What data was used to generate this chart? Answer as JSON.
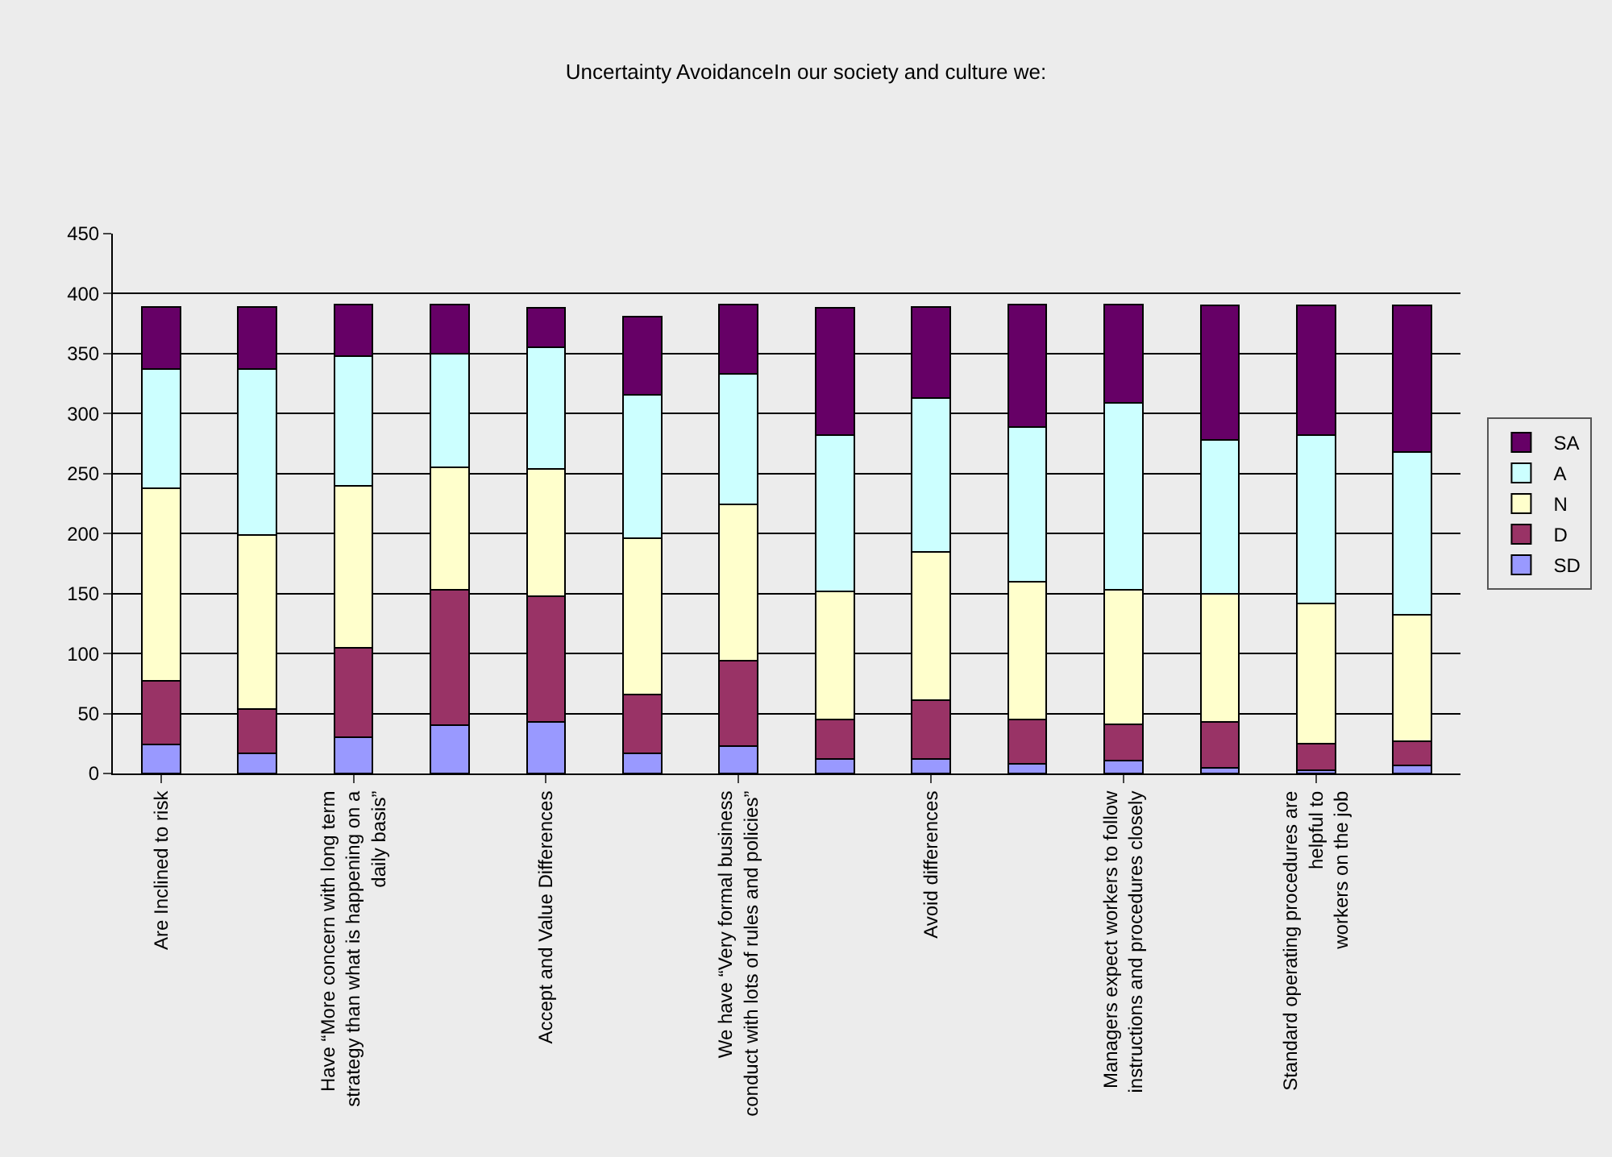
{
  "chart_data": {
    "type": "bar",
    "stacked": true,
    "title": "Uncertainty AvoidanceIn our society and culture we:",
    "categories": [
      "Are Inclined to risk",
      null,
      "Have “More concern with long term\nstrategy than what is happening on a\ndaily basis”",
      null,
      "Accept and Value Differences",
      null,
      "We have “Very formal business\nconduct with lots of rules and policies”",
      null,
      "Avoid differences",
      null,
      "Managers expect workers to follow\ninstructions and procedures closely",
      null,
      "Standard operating procedures are\nhelpful to\nworkers on the job",
      null
    ],
    "series": [
      {
        "name": "SD",
        "color": "#9999ff",
        "values": [
          24,
          17,
          30,
          40,
          43,
          17,
          23,
          12,
          12,
          8,
          11,
          5,
          3,
          7
        ]
      },
      {
        "name": "D",
        "color": "#993366",
        "values": [
          53,
          37,
          75,
          113,
          105,
          49,
          71,
          33,
          49,
          37,
          30,
          38,
          22,
          20
        ]
      },
      {
        "name": "N",
        "color": "#ffffcc",
        "values": [
          161,
          145,
          135,
          102,
          106,
          130,
          130,
          107,
          124,
          115,
          112,
          107,
          117,
          105
        ]
      },
      {
        "name": "A",
        "color": "#ccffff",
        "values": [
          99,
          138,
          108,
          95,
          101,
          120,
          109,
          130,
          128,
          129,
          156,
          128,
          140,
          136
        ]
      },
      {
        "name": "SA",
        "color": "#660066",
        "values": [
          52,
          52,
          43,
          41,
          33,
          65,
          58,
          106,
          76,
          102,
          82,
          112,
          108,
          122
        ]
      }
    ],
    "ylim": [
      0,
      450
    ],
    "yticks": [
      0,
      50,
      100,
      150,
      200,
      250,
      300,
      350,
      400,
      450
    ],
    "grid": "y",
    "legend": "right"
  }
}
